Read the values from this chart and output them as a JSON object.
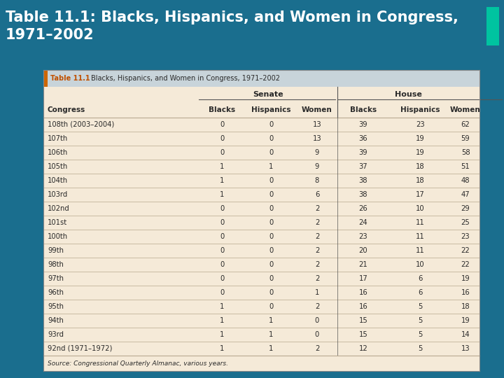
{
  "title": "Table 11.1: Blacks, Hispanics, and Women in Congress,\n1971–2002",
  "table_title": "Table 11.1",
  "table_subtitle": "Blacks, Hispanics, and Women in Congress, 1971–2002",
  "source": "Source: Congressional Quarterly Almanac, various years.",
  "rows": [
    [
      "108th (2003–2004)",
      "0",
      "0",
      "13",
      "39",
      "23",
      "62"
    ],
    [
      "107th",
      "0",
      "0",
      "13",
      "36",
      "19",
      "59"
    ],
    [
      "106th",
      "0",
      "0",
      "9",
      "39",
      "19",
      "58"
    ],
    [
      "105th",
      "1",
      "1",
      "9",
      "37",
      "18",
      "51"
    ],
    [
      "104th",
      "1",
      "0",
      "8",
      "38",
      "18",
      "48"
    ],
    [
      "103rd",
      "1",
      "0",
      "6",
      "38",
      "17",
      "47"
    ],
    [
      "102nd",
      "0",
      "0",
      "2",
      "26",
      "10",
      "29"
    ],
    [
      "101st",
      "0",
      "0",
      "2",
      "24",
      "11",
      "25"
    ],
    [
      "100th",
      "0",
      "0",
      "2",
      "23",
      "11",
      "23"
    ],
    [
      "99th",
      "0",
      "0",
      "2",
      "20",
      "11",
      "22"
    ],
    [
      "98th",
      "0",
      "0",
      "2",
      "21",
      "10",
      "22"
    ],
    [
      "97th",
      "0",
      "0",
      "2",
      "17",
      "6",
      "19"
    ],
    [
      "96th",
      "0",
      "0",
      "1",
      "16",
      "6",
      "16"
    ],
    [
      "95th",
      "1",
      "0",
      "2",
      "16",
      "5",
      "18"
    ],
    [
      "94th",
      "1",
      "1",
      "0",
      "15",
      "5",
      "19"
    ],
    [
      "93rd",
      "1",
      "1",
      "0",
      "15",
      "5",
      "14"
    ],
    [
      "92nd (1971–1972)",
      "1",
      "1",
      "2",
      "12",
      "5",
      "13"
    ]
  ],
  "bg_outer": "#1a6e8e",
  "bg_table_header_row": "#c8d4da",
  "bg_table_body": "#f5ead8",
  "teal_bar_color": "#00c4a0",
  "title_color": "#ffffff",
  "header_text_color": "#2a2a2a",
  "table_title_color": "#c05000",
  "body_text_color": "#2a2a2a",
  "sep_line_color": "#b8aa90",
  "group_line_color": "#555555"
}
